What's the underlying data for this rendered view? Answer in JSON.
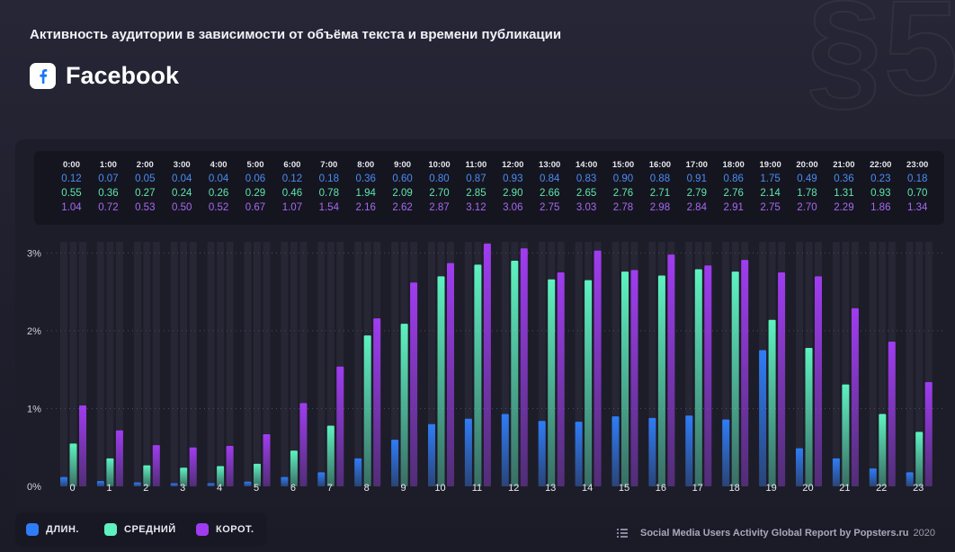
{
  "watermark": "§5",
  "header": {
    "title": "Активность аудитории в зависимости от объёма текста и времени публикации",
    "platform": "Facebook"
  },
  "legend": {
    "long_label": "ДЛИН.",
    "medium_label": "СРЕДНИЙ",
    "short_label": "КОРОТ."
  },
  "footer": {
    "source": "Social Media Users Activity Global Report by Popsters.ru",
    "year": "2020"
  },
  "colors": {
    "long": "#2f7df6",
    "medium": "#5ef2c0",
    "short": "#a03cf0"
  },
  "chart_data": {
    "type": "bar",
    "time_labels": [
      "0:00",
      "1:00",
      "2:00",
      "3:00",
      "4:00",
      "5:00",
      "6:00",
      "7:00",
      "8:00",
      "9:00",
      "10:00",
      "11:00",
      "12:00",
      "13:00",
      "14:00",
      "15:00",
      "16:00",
      "17:00",
      "18:00",
      "19:00",
      "20:00",
      "21:00",
      "22:00",
      "23:00"
    ],
    "categories": [
      "0",
      "1",
      "2",
      "3",
      "4",
      "5",
      "6",
      "7",
      "8",
      "9",
      "10",
      "11",
      "12",
      "13",
      "14",
      "15",
      "16",
      "17",
      "18",
      "19",
      "20",
      "21",
      "22",
      "23"
    ],
    "series": [
      {
        "name": "ДЛИН.",
        "color": "#2f7df6",
        "label_color": "#4a8cf5",
        "values": [
          0.12,
          0.07,
          0.05,
          0.04,
          0.04,
          0.06,
          0.12,
          0.18,
          0.36,
          0.6,
          0.8,
          0.87,
          0.93,
          0.84,
          0.83,
          0.9,
          0.88,
          0.91,
          0.86,
          1.75,
          0.49,
          0.36,
          0.23,
          0.18
        ]
      },
      {
        "name": "СРЕДНИЙ",
        "color": "#5ef2c0",
        "label_color": "#5ee6b0",
        "values": [
          0.55,
          0.36,
          0.27,
          0.24,
          0.26,
          0.29,
          0.46,
          0.78,
          1.94,
          2.09,
          2.7,
          2.85,
          2.9,
          2.66,
          2.65,
          2.76,
          2.71,
          2.79,
          2.76,
          2.14,
          1.78,
          1.31,
          0.93,
          0.7
        ]
      },
      {
        "name": "КОРОТ.",
        "color": "#a03cf0",
        "label_color": "#a46af2",
        "values": [
          1.04,
          0.72,
          0.53,
          0.5,
          0.52,
          0.67,
          1.07,
          1.54,
          2.16,
          2.62,
          2.87,
          3.12,
          3.06,
          2.75,
          3.03,
          2.78,
          2.98,
          2.84,
          2.91,
          2.75,
          2.7,
          2.29,
          1.86,
          1.34
        ]
      }
    ],
    "y_ticks": [
      "0%",
      "1%",
      "2%",
      "3%"
    ],
    "y_tick_values": [
      0,
      1,
      2,
      3
    ],
    "ylim": [
      0,
      3.12
    ],
    "grid": true,
    "legend_position": "bottom-left"
  }
}
